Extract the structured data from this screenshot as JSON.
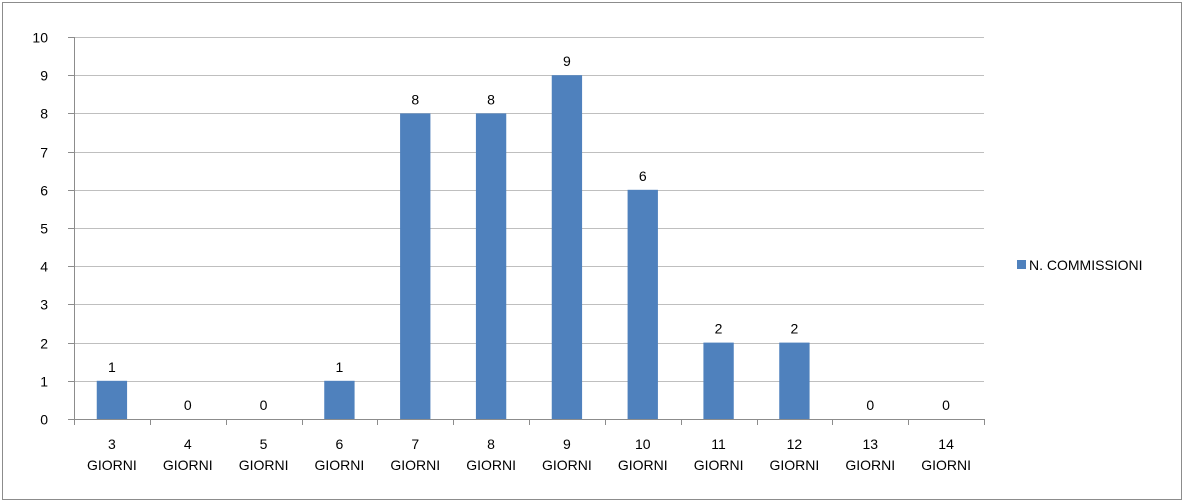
{
  "chart_data": {
    "type": "bar",
    "categories": [
      [
        "3",
        "GIORNI"
      ],
      [
        "4",
        "GIORNI"
      ],
      [
        "5",
        "GIORNI"
      ],
      [
        "6",
        "GIORNI"
      ],
      [
        "7",
        "GIORNI"
      ],
      [
        "8",
        "GIORNI"
      ],
      [
        "9",
        "GIORNI"
      ],
      [
        "10",
        "GIORNI"
      ],
      [
        "11",
        "GIORNI"
      ],
      [
        "12",
        "GIORNI"
      ],
      [
        "13",
        "GIORNI"
      ],
      [
        "14",
        "GIORNI"
      ]
    ],
    "series": [
      {
        "name": "N. COMMISSIONI",
        "values": [
          1,
          0,
          0,
          1,
          8,
          8,
          9,
          6,
          2,
          2,
          0,
          0
        ]
      }
    ],
    "ylim": [
      0,
      10
    ],
    "ytick_step": 1,
    "grid": true,
    "data_labels": true,
    "legend_position": "right",
    "colors": {
      "bar": "#4f81bd",
      "grid": "#bfbfbf",
      "axis": "#8c8c8c"
    }
  }
}
